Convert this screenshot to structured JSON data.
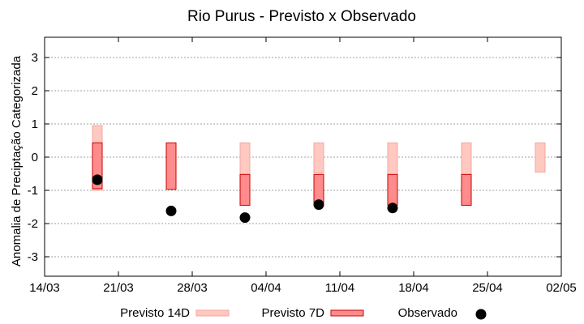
{
  "chart_data": {
    "type": "range_and_scatter",
    "title": "Rio Purus - Previsto x Observado",
    "xlabel": "",
    "ylabel": "Anomalia de Preciptação Categorizada",
    "x_ticks": [
      "14/03",
      "21/03",
      "28/03",
      "04/04",
      "11/04",
      "18/04",
      "25/04",
      "02/05"
    ],
    "y_ticks": [
      "-3",
      "-2",
      "-1",
      "0",
      "1",
      "2",
      "3"
    ],
    "ylim": [
      -3.5,
      3.5
    ],
    "grid": true,
    "legend_position": "bottom",
    "forecast_dates": [
      "19/03",
      "26/03",
      "02/04",
      "09/04",
      "16/04",
      "23/04",
      "30/04"
    ],
    "series": [
      {
        "name": "Previsto 14D",
        "kind": "range",
        "color": "#ffc8c0",
        "edge": "#f0a8a0",
        "ranges": [
          [
            -1.0,
            0.95
          ],
          null,
          [
            -1.0,
            0.43
          ],
          [
            -0.48,
            0.43
          ],
          [
            -1.0,
            0.43
          ],
          [
            -1.0,
            0.43
          ],
          [
            -0.45,
            0.43
          ]
        ]
      },
      {
        "name": "Previsto 7D",
        "kind": "range",
        "color": "#ff8c8c",
        "edge": "#cc0000",
        "ranges": [
          [
            -0.95,
            0.43
          ],
          [
            -0.97,
            0.43
          ],
          [
            -1.45,
            -0.52
          ],
          [
            -1.38,
            -0.52
          ],
          [
            -1.45,
            -0.52
          ],
          [
            -1.45,
            -0.52
          ],
          null
        ]
      },
      {
        "name": "Observado",
        "kind": "point",
        "color": "#000000",
        "values": [
          -0.68,
          -1.62,
          -1.82,
          -1.43,
          -1.53,
          null,
          null
        ]
      }
    ]
  }
}
